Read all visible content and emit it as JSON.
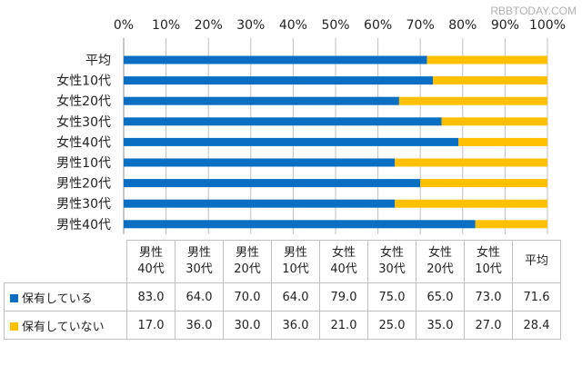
{
  "watermark": "RBBTODAY.COM",
  "colors": {
    "owned": "#0a6fc2",
    "not_owned": "#ffc000",
    "grid": "#bfbfbf"
  },
  "chart_data": {
    "type": "bar",
    "orientation": "horizontal",
    "stacked": true,
    "categories": [
      "平均",
      "女性10代",
      "女性20代",
      "女性30代",
      "女性40代",
      "男性10代",
      "男性20代",
      "男性30代",
      "男性40代"
    ],
    "series": [
      {
        "name": "保有している",
        "values": [
          71.6,
          73.0,
          65.0,
          75.0,
          79.0,
          64.0,
          70.0,
          64.0,
          83.0
        ]
      },
      {
        "name": "保有していない",
        "values": [
          28.4,
          27.0,
          35.0,
          25.0,
          21.0,
          36.0,
          30.0,
          36.0,
          17.0
        ]
      }
    ],
    "xlim": [
      0,
      100
    ],
    "x_ticks": [
      "0%",
      "10%",
      "20%",
      "30%",
      "40%",
      "50%",
      "60%",
      "70%",
      "80%",
      "90%",
      "100%"
    ],
    "grid": true,
    "legend": "data-table-below",
    "table": {
      "columns": [
        [
          "男性",
          "40代"
        ],
        [
          "男性",
          "30代"
        ],
        [
          "男性",
          "20代"
        ],
        [
          "男性",
          "10代"
        ],
        [
          "女性",
          "40代"
        ],
        [
          "女性",
          "30代"
        ],
        [
          "女性",
          "20代"
        ],
        [
          "女性",
          "10代"
        ],
        [
          "平均",
          ""
        ]
      ],
      "rows": [
        {
          "label": "保有している",
          "values": [
            "83.0",
            "64.0",
            "70.0",
            "64.0",
            "79.0",
            "75.0",
            "65.0",
            "73.0",
            "71.6"
          ]
        },
        {
          "label": "保有していない",
          "values": [
            "17.0",
            "36.0",
            "30.0",
            "36.0",
            "21.0",
            "25.0",
            "35.0",
            "27.0",
            "28.4"
          ]
        }
      ]
    }
  }
}
